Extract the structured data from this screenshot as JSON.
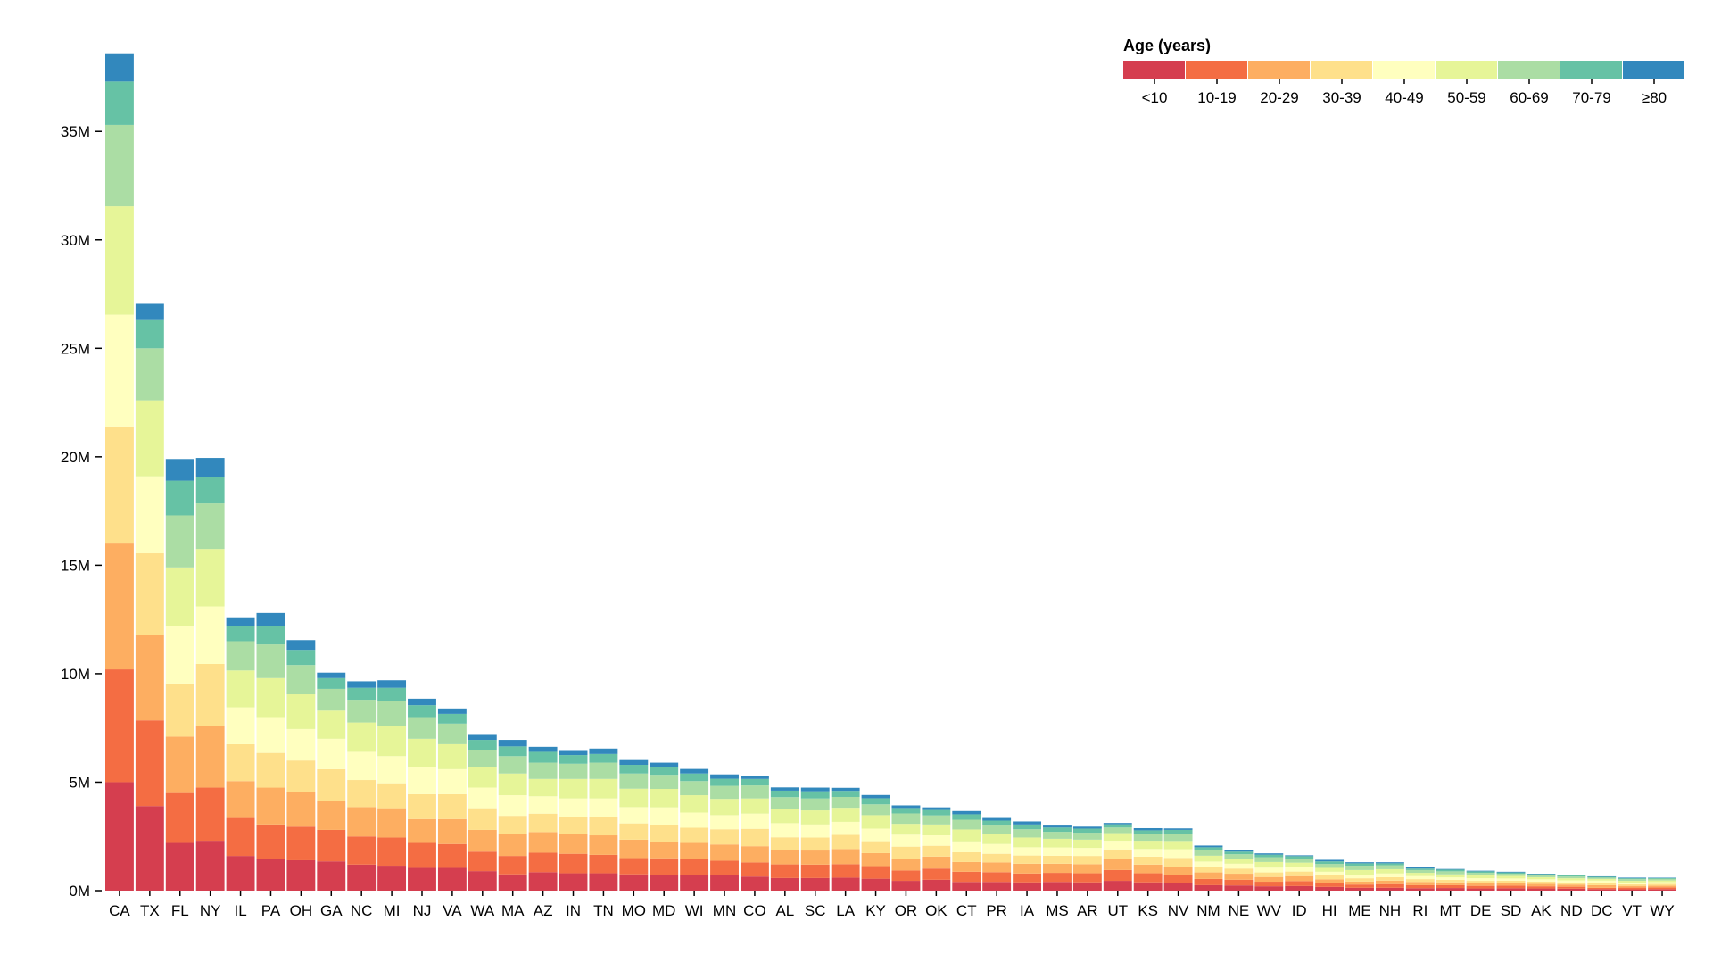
{
  "chart_data": {
    "type": "bar",
    "stacked": true,
    "title": "",
    "xlabel": "",
    "ylabel": "",
    "ylim": [
      0,
      39000000
    ],
    "y_ticks": [
      {
        "value": 0,
        "label": "0M"
      },
      {
        "value": 5000000,
        "label": "5M"
      },
      {
        "value": 10000000,
        "label": "10M"
      },
      {
        "value": 15000000,
        "label": "15M"
      },
      {
        "value": 20000000,
        "label": "20M"
      },
      {
        "value": 25000000,
        "label": "25M"
      },
      {
        "value": 30000000,
        "label": "30M"
      },
      {
        "value": 35000000,
        "label": "35M"
      }
    ],
    "legend": {
      "title": "Age (years)",
      "position": "top-right"
    },
    "categories": [
      "CA",
      "TX",
      "FL",
      "NY",
      "IL",
      "PA",
      "OH",
      "GA",
      "NC",
      "MI",
      "NJ",
      "VA",
      "WA",
      "MA",
      "AZ",
      "IN",
      "TN",
      "MO",
      "MD",
      "WI",
      "MN",
      "CO",
      "AL",
      "SC",
      "LA",
      "KY",
      "OR",
      "OK",
      "CT",
      "PR",
      "IA",
      "MS",
      "AR",
      "UT",
      "KS",
      "NV",
      "NM",
      "NE",
      "WV",
      "ID",
      "HI",
      "ME",
      "NH",
      "RI",
      "MT",
      "DE",
      "SD",
      "AK",
      "ND",
      "DC",
      "VT",
      "WY"
    ],
    "series": [
      {
        "name": "<10",
        "color": "#d53e4f",
        "values": [
          5000000,
          3900000,
          2200000,
          2300000,
          1600000,
          1450000,
          1400000,
          1350000,
          1200000,
          1150000,
          1050000,
          1050000,
          900000,
          750000,
          850000,
          800000,
          800000,
          750000,
          720000,
          700000,
          700000,
          650000,
          580000,
          580000,
          600000,
          550000,
          450000,
          500000,
          400000,
          400000,
          380000,
          400000,
          380000,
          450000,
          380000,
          350000,
          250000,
          240000,
          200000,
          210000,
          170000,
          130000,
          130000,
          110000,
          120000,
          100000,
          110000,
          100000,
          90000,
          70000,
          60000,
          70000
        ]
      },
      {
        "name": "10-19",
        "color": "#f46d43",
        "values": [
          5200000,
          3950000,
          2300000,
          2450000,
          1750000,
          1600000,
          1550000,
          1450000,
          1300000,
          1300000,
          1150000,
          1100000,
          900000,
          850000,
          900000,
          900000,
          850000,
          750000,
          770000,
          750000,
          680000,
          650000,
          630000,
          620000,
          620000,
          580000,
          480000,
          520000,
          470000,
          450000,
          410000,
          420000,
          420000,
          500000,
          420000,
          360000,
          290000,
          260000,
          210000,
          230000,
          160000,
          150000,
          170000,
          140000,
          130000,
          120000,
          120000,
          100000,
          90000,
          60000,
          80000,
          80000
        ]
      },
      {
        "name": "20-29",
        "color": "#fdae61",
        "values": [
          5800000,
          3950000,
          2600000,
          2850000,
          1700000,
          1700000,
          1600000,
          1350000,
          1350000,
          1350000,
          1100000,
          1150000,
          1000000,
          1000000,
          950000,
          900000,
          900000,
          850000,
          750000,
          750000,
          750000,
          750000,
          650000,
          650000,
          700000,
          600000,
          550000,
          550000,
          450000,
          450000,
          450000,
          420000,
          420000,
          500000,
          400000,
          400000,
          300000,
          280000,
          220000,
          230000,
          190000,
          140000,
          160000,
          150000,
          130000,
          120000,
          120000,
          110000,
          100000,
          120000,
          80000,
          80000
        ]
      },
      {
        "name": "30-39",
        "color": "#fee08b",
        "values": [
          5400000,
          3750000,
          2450000,
          2850000,
          1700000,
          1600000,
          1450000,
          1450000,
          1250000,
          1150000,
          1150000,
          1150000,
          1000000,
          850000,
          850000,
          800000,
          850000,
          750000,
          800000,
          700000,
          700000,
          800000,
          600000,
          600000,
          650000,
          550000,
          550000,
          500000,
          450000,
          400000,
          380000,
          370000,
          380000,
          450000,
          370000,
          400000,
          260000,
          240000,
          210000,
          210000,
          180000,
          150000,
          160000,
          130000,
          120000,
          110000,
          110000,
          110000,
          100000,
          120000,
          70000,
          80000
        ]
      },
      {
        "name": "40-49",
        "color": "#ffffbf",
        "values": [
          5150000,
          3550000,
          2650000,
          2650000,
          1700000,
          1650000,
          1450000,
          1400000,
          1300000,
          1250000,
          1250000,
          1150000,
          950000,
          950000,
          800000,
          850000,
          850000,
          750000,
          800000,
          700000,
          650000,
          700000,
          650000,
          600000,
          600000,
          580000,
          550000,
          480000,
          500000,
          450000,
          380000,
          380000,
          370000,
          400000,
          350000,
          400000,
          240000,
          220000,
          220000,
          200000,
          170000,
          170000,
          170000,
          140000,
          110000,
          120000,
          100000,
          100000,
          90000,
          90000,
          70000,
          80000
        ]
      },
      {
        "name": "50-59",
        "color": "#e6f598",
        "values": [
          5000000,
          3500000,
          2700000,
          2650000,
          1700000,
          1800000,
          1600000,
          1300000,
          1350000,
          1400000,
          1300000,
          1150000,
          950000,
          1000000,
          800000,
          900000,
          900000,
          850000,
          850000,
          800000,
          750000,
          700000,
          650000,
          650000,
          650000,
          620000,
          500000,
          500000,
          550000,
          450000,
          450000,
          400000,
          380000,
          350000,
          380000,
          380000,
          270000,
          240000,
          260000,
          210000,
          180000,
          210000,
          200000,
          150000,
          140000,
          130000,
          120000,
          100000,
          100000,
          80000,
          90000,
          80000
        ]
      },
      {
        "name": "60-69",
        "color": "#abdda4",
        "values": [
          3750000,
          2400000,
          2400000,
          2100000,
          1350000,
          1550000,
          1350000,
          1000000,
          1050000,
          1150000,
          1000000,
          950000,
          800000,
          800000,
          750000,
          700000,
          750000,
          700000,
          650000,
          650000,
          600000,
          600000,
          550000,
          550000,
          500000,
          500000,
          480000,
          420000,
          450000,
          400000,
          380000,
          320000,
          320000,
          260000,
          300000,
          320000,
          260000,
          200000,
          220000,
          190000,
          180000,
          200000,
          180000,
          130000,
          140000,
          120000,
          100000,
          90000,
          80000,
          60000,
          80000,
          70000
        ]
      },
      {
        "name": "70-79",
        "color": "#66c2a5",
        "values": [
          2000000,
          1300000,
          1600000,
          1200000,
          700000,
          850000,
          700000,
          500000,
          550000,
          600000,
          550000,
          450000,
          450000,
          450000,
          500000,
          400000,
          400000,
          400000,
          350000,
          350000,
          330000,
          300000,
          300000,
          330000,
          280000,
          280000,
          250000,
          250000,
          250000,
          230000,
          220000,
          200000,
          190000,
          150000,
          180000,
          190000,
          130000,
          120000,
          120000,
          110000,
          120000,
          110000,
          90000,
          70000,
          80000,
          70000,
          60000,
          50000,
          50000,
          40000,
          40000,
          40000
        ]
      },
      {
        "name": "≥80",
        "color": "#3288bd",
        "values": [
          1300000,
          750000,
          1000000,
          900000,
          400000,
          600000,
          450000,
          250000,
          300000,
          350000,
          300000,
          250000,
          230000,
          300000,
          230000,
          230000,
          250000,
          220000,
          210000,
          210000,
          200000,
          150000,
          150000,
          170000,
          140000,
          150000,
          120000,
          120000,
          150000,
          120000,
          140000,
          90000,
          90000,
          60000,
          100000,
          70000,
          80000,
          60000,
          60000,
          40000,
          70000,
          50000,
          50000,
          50000,
          30000,
          30000,
          30000,
          20000,
          30000,
          20000,
          30000,
          20000
        ]
      }
    ]
  }
}
